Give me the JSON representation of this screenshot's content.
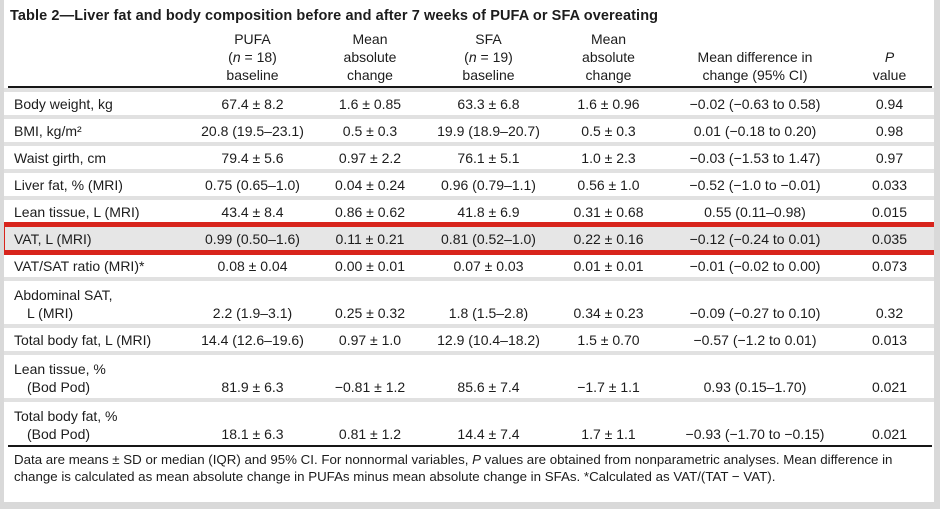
{
  "title": "Table 2—Liver fat and body composition before and after 7 weeks of PUFA or SFA overeating",
  "colors": {
    "highlight_border": "#d8241c",
    "highlight_row_bg": "#e6e6e6",
    "row_separator": "#e1e1e1",
    "rule": "#171717",
    "page_edge": "#d9d9d9"
  },
  "header": {
    "columns": [
      {
        "id": "variable",
        "lines": []
      },
      {
        "id": "pufa-baseline",
        "lines": [
          [
            {
              "t": "PUFA"
            }
          ],
          [
            {
              "t": "("
            },
            {
              "t": "n",
              "i": true
            },
            {
              "t": " = 18)"
            }
          ],
          [
            {
              "t": "baseline"
            }
          ]
        ]
      },
      {
        "id": "pufa-mean-absolute-change",
        "lines": [
          [
            {
              "t": "Mean"
            }
          ],
          [
            {
              "t": "absolute"
            }
          ],
          [
            {
              "t": "change"
            }
          ]
        ]
      },
      {
        "id": "sfa-baseline",
        "lines": [
          [
            {
              "t": "SFA"
            }
          ],
          [
            {
              "t": "("
            },
            {
              "t": "n",
              "i": true
            },
            {
              "t": " = 19)"
            }
          ],
          [
            {
              "t": "baseline"
            }
          ]
        ]
      },
      {
        "id": "sfa-mean-absolute-change",
        "lines": [
          [
            {
              "t": "Mean"
            }
          ],
          [
            {
              "t": "absolute"
            }
          ],
          [
            {
              "t": "change"
            }
          ]
        ]
      },
      {
        "id": "mean-difference",
        "lines": [
          [
            {
              "t": "Mean difference in"
            }
          ],
          [
            {
              "t": "change (95% CI)"
            }
          ]
        ]
      },
      {
        "id": "p-value",
        "lines": [
          [
            {
              "t": "P",
              "i": true
            }
          ],
          [
            {
              "t": "value"
            }
          ]
        ]
      }
    ]
  },
  "rows": [
    {
      "label_lines": [
        "Body weight, kg"
      ],
      "cells": [
        "67.4 ± 8.2",
        "1.6 ± 0.85",
        "63.3 ± 6.8",
        "1.6 ± 0.96",
        "−0.02 (−0.63 to 0.58)",
        "0.94"
      ],
      "highlighted": false
    },
    {
      "label_lines": [
        "BMI, kg/m²"
      ],
      "cells": [
        "20.8 (19.5–23.1)",
        "0.5 ± 0.3",
        "19.9 (18.9–20.7)",
        "0.5 ± 0.3",
        "0.01 (−0.18 to 0.20)",
        "0.98"
      ],
      "highlighted": false
    },
    {
      "label_lines": [
        "Waist girth, cm"
      ],
      "cells": [
        "79.4 ± 5.6",
        "0.97 ± 2.2",
        "76.1 ± 5.1",
        "1.0 ± 2.3",
        "−0.03 (−1.53 to 1.47)",
        "0.97"
      ],
      "highlighted": false
    },
    {
      "label_lines": [
        "Liver fat, % (MRI)"
      ],
      "cells": [
        "0.75 (0.65–1.0)",
        "0.04 ± 0.24",
        "0.96 (0.79–1.1)",
        "0.56 ± 1.0",
        "−0.52 (−1.0 to −0.01)",
        "0.033"
      ],
      "highlighted": false
    },
    {
      "label_lines": [
        "Lean tissue, L (MRI)"
      ],
      "cells": [
        "43.4 ± 8.4",
        "0.86 ± 0.62",
        "41.8 ± 6.9",
        "0.31 ± 0.68",
        "0.55 (0.11–0.98)",
        "0.015"
      ],
      "highlighted": false
    },
    {
      "label_lines": [
        "VAT, L (MRI)"
      ],
      "cells": [
        "0.99 (0.50–1.6)",
        "0.11 ± 0.21",
        "0.81 (0.52–1.0)",
        "0.22 ± 0.16",
        "−0.12 (−0.24 to 0.01)",
        "0.035"
      ],
      "highlighted": true
    },
    {
      "label_lines": [
        "VAT/SAT ratio (MRI)*"
      ],
      "cells": [
        "0.08 ± 0.04",
        "0.00 ± 0.01",
        "0.07 ± 0.03",
        "0.01 ± 0.01",
        "−0.01 (−0.02 to 0.00)",
        "0.073"
      ],
      "highlighted": false
    },
    {
      "label_lines": [
        "Abdominal SAT,",
        "L (MRI)"
      ],
      "cells": [
        "2.2 (1.9–3.1)",
        "0.25 ± 0.32",
        "1.8 (1.5–2.8)",
        "0.34 ± 0.23",
        "−0.09 (−0.27 to 0.10)",
        "0.32"
      ],
      "highlighted": false
    },
    {
      "label_lines": [
        "Total body fat, L (MRI)"
      ],
      "cells": [
        "14.4 (12.6–19.6)",
        "0.97 ± 1.0",
        "12.9 (10.4–18.2)",
        "1.5 ± 0.70",
        "−0.57 (−1.2 to 0.01)",
        "0.013"
      ],
      "highlighted": false
    },
    {
      "label_lines": [
        "Lean tissue, %",
        "(Bod Pod)"
      ],
      "cells": [
        "81.9 ± 6.3",
        "−0.81 ± 1.2",
        "85.6 ± 7.4",
        "−1.7 ± 1.1",
        "0.93 (0.15–1.70)",
        "0.021"
      ],
      "highlighted": false
    },
    {
      "label_lines": [
        "Total body fat, %",
        "(Bod Pod)"
      ],
      "cells": [
        "18.1 ± 6.3",
        "0.81 ± 1.2",
        "14.4 ± 7.4",
        "1.7 ± 1.1",
        "−0.93 (−1.70 to −0.15)",
        "0.021"
      ],
      "highlighted": false
    }
  ],
  "footnote": [
    {
      "t": "Data are means ± SD or median (IQR) and 95% CI. For nonnormal variables, "
    },
    {
      "t": "P",
      "i": true
    },
    {
      "t": " values are obtained from nonparametric analyses. Mean difference in change is calculated as mean absolute change in PUFAs minus mean absolute change in SFAs. *Calculated as VAT/(TAT − VAT)."
    }
  ]
}
